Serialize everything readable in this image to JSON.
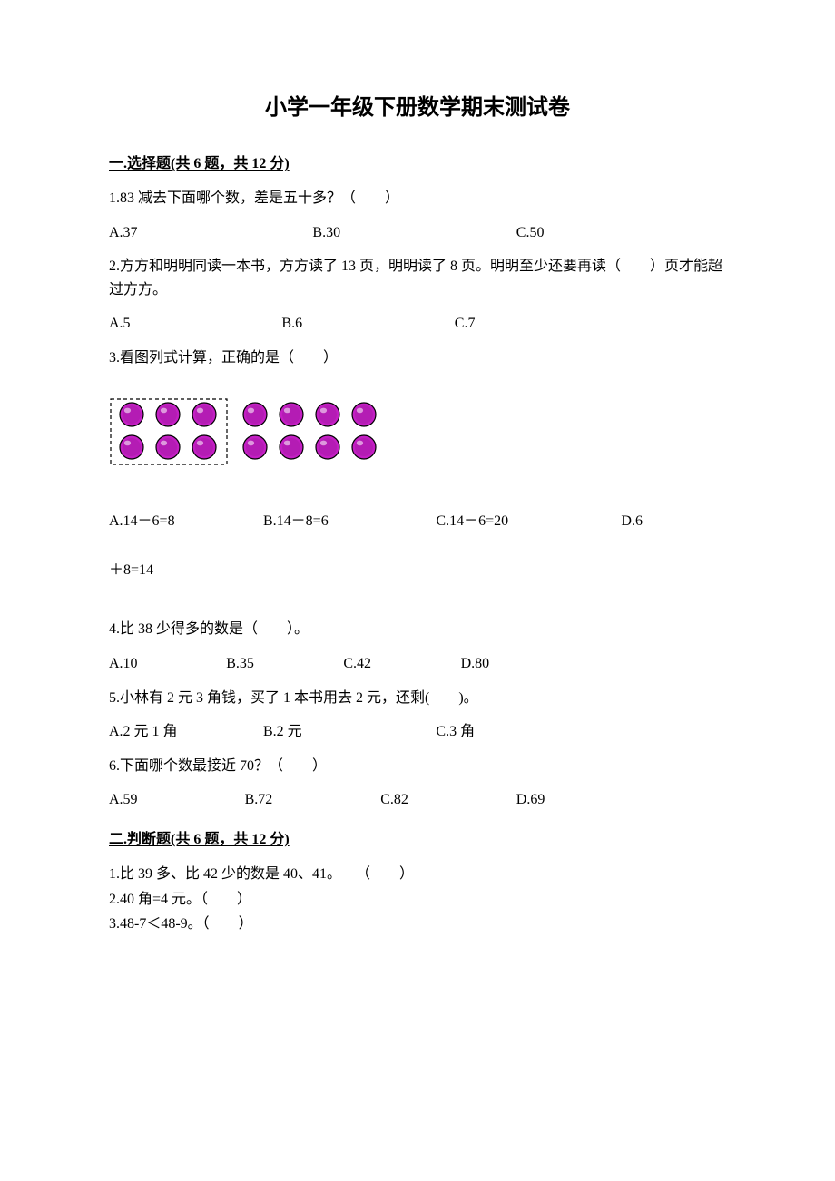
{
  "title": "小学一年级下册数学期末测试卷",
  "section1": {
    "header": "一.选择题(共 6 题，共 12 分)",
    "q1": {
      "text": "1.83 减去下面哪个数，差是五十多？（　　）",
      "a": "A.37",
      "b": "B.30",
      "c": "C.50"
    },
    "q2": {
      "text": "2.方方和明明同读一本书，方方读了 13 页，明明读了 8 页。明明至少还要再读（　　）页才能超过方方。",
      "a": "A.5",
      "b": "B.6",
      "c": "C.7"
    },
    "q3": {
      "text": "3.看图列式计算，正确的是（　　）",
      "a": "A.14－6=8",
      "b": "B.14－8=6",
      "c": "C.14－6=20",
      "d": "D.6",
      "cont": "＋8=14"
    },
    "q4": {
      "text": "4.比 38 少得多的数是（　　）。",
      "a": "A.10",
      "b": "B.35",
      "c": "C.42",
      "d": "D.80"
    },
    "q5": {
      "text": "5.小林有 2 元 3 角钱，买了 1 本书用去 2 元，还剩(　　)。",
      "a": "A.2 元 1 角",
      "b": "B.2 元",
      "c": "C.3 角"
    },
    "q6": {
      "text": "6.下面哪个数最接近 70？（　　）",
      "a": "A.59",
      "b": "B.72",
      "c": "C.82",
      "d": "D.69"
    }
  },
  "section2": {
    "header": "二.判断题(共 6 题，共 12 分)",
    "q1": "1.比 39 多、比 42 少的数是 40、41。　　（　　）",
    "q2": "2.40 角=4 元。（　　）",
    "q3": "3.48-7＜48-9。（　　）"
  },
  "diagram": {
    "dot_fill": "#c41fc4",
    "dot_stroke": "#000000",
    "dot_radius_outer": 13,
    "dot_radius_inner_shade": 10,
    "left_cols": 3,
    "right_cols": 4,
    "rows": 2
  }
}
